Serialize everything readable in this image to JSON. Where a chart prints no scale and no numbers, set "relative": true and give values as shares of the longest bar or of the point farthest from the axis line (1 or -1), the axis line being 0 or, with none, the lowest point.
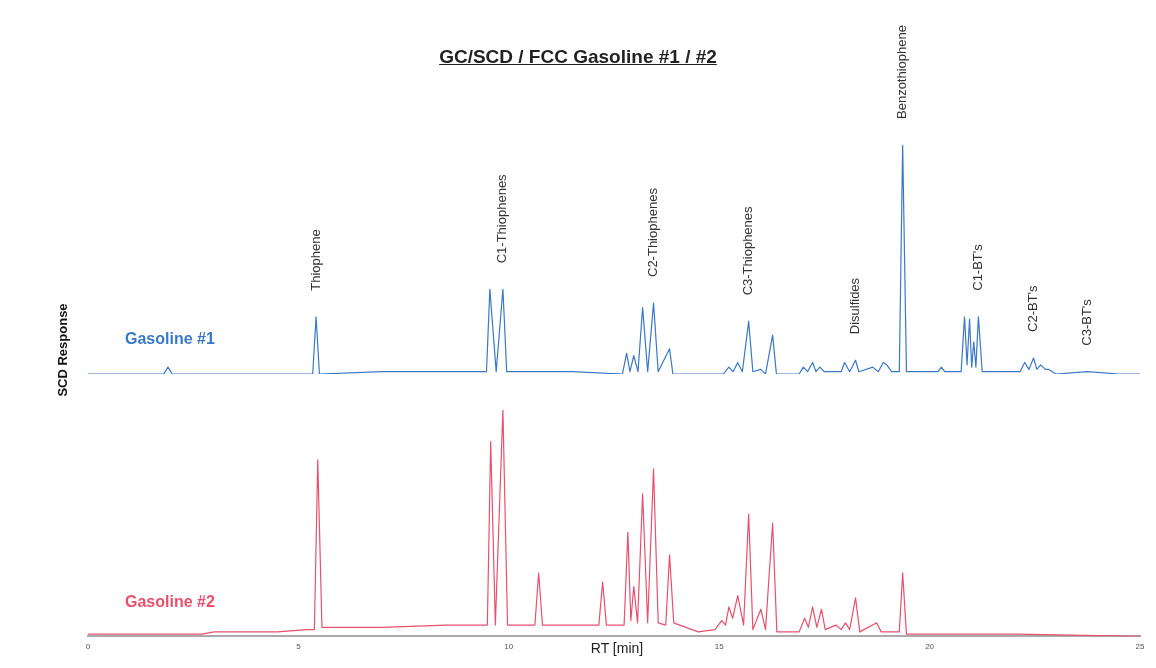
{
  "chart_data": [
    {
      "type": "line",
      "title": "GC/SCD / FCC Gasoline #1 / #2",
      "ylabel": "SCD Response",
      "relative": true,
      "xlim": [
        0,
        25
      ],
      "tick_labels": false,
      "grid": false,
      "marker": "none",
      "legend": false,
      "x": [
        0,
        1.8,
        1.9,
        2.0,
        5.34,
        5.42,
        5.5,
        7.0,
        8.5,
        9.47,
        9.55,
        9.7,
        9.86,
        9.95,
        11.5,
        12.7,
        12.8,
        12.88,
        12.97,
        13.07,
        13.18,
        13.3,
        13.44,
        13.55,
        13.82,
        13.9,
        15.1,
        15.23,
        15.33,
        15.44,
        15.55,
        15.7,
        15.8,
        15.99,
        16.1,
        16.27,
        16.36,
        16.9,
        17.0,
        17.1,
        17.22,
        17.3,
        17.39,
        17.5,
        17.9,
        17.98,
        18.1,
        18.24,
        18.32,
        18.65,
        18.78,
        18.9,
        18.98,
        19.1,
        19.28,
        19.36,
        19.45,
        20.2,
        20.28,
        20.36,
        20.75,
        20.83,
        20.89,
        20.95,
        21.0,
        21.05,
        21.1,
        21.16,
        21.25,
        22.15,
        22.26,
        22.36,
        22.47,
        22.55,
        22.64,
        22.75,
        22.83,
        23.0,
        23.75,
        24.5,
        25
      ],
      "series": [
        {
          "name": "Gasoline #1",
          "color": "#3a78c8",
          "values": [
            0,
            0,
            0.03,
            0,
            0,
            0.25,
            0,
            0.01,
            0.01,
            0.01,
            0.37,
            0.01,
            0.37,
            0.01,
            0.01,
            0,
            0.09,
            0.01,
            0.08,
            0.01,
            0.29,
            0.01,
            0.31,
            0.01,
            0.11,
            0,
            0,
            0.03,
            0.01,
            0.05,
            0.01,
            0.23,
            0.01,
            0.02,
            0,
            0.17,
            0,
            0,
            0.03,
            0.01,
            0.05,
            0.01,
            0.03,
            0.01,
            0.01,
            0.05,
            0.01,
            0.06,
            0.01,
            0.03,
            0.01,
            0.05,
            0.04,
            0.01,
            0.01,
            1.0,
            0.01,
            0.01,
            0.03,
            0.01,
            0.01,
            0.25,
            0.04,
            0.24,
            0.03,
            0.14,
            0.03,
            0.25,
            0.01,
            0.01,
            0.05,
            0.02,
            0.07,
            0.02,
            0.04,
            0.02,
            0.02,
            0,
            0.01,
            0,
            0
          ]
        }
      ],
      "annotations": [
        {
          "text": "Thiophene",
          "x": 5.42,
          "y": 0.25
        },
        {
          "text": "C1-Thiophenes",
          "x": 9.86,
          "y": 0.37
        },
        {
          "text": "C2-Thiophenes",
          "x": 13.44,
          "y": 0.31
        },
        {
          "text": "C3-Thiophenes",
          "x": 15.7,
          "y": 0.23
        },
        {
          "text": "Disulfides",
          "x": 18.24,
          "y": 0.06
        },
        {
          "text": "Benzothiophene",
          "x": 19.36,
          "y": 1.0
        },
        {
          "text": "C1-BT's",
          "x": 21.16,
          "y": 0.25
        },
        {
          "text": "C2-BT's",
          "x": 22.47,
          "y": 0.07
        },
        {
          "text": "C3-BT's",
          "x": 23.75,
          "y": 0.01
        }
      ]
    },
    {
      "type": "line",
      "xlabel": "RT [min]",
      "relative": true,
      "xlim": [
        0,
        25
      ],
      "xticks": [
        0,
        5,
        10,
        15,
        20,
        25
      ],
      "tick_labels": "x",
      "grid": false,
      "marker": "none",
      "legend": false,
      "x": [
        0,
        1.5,
        2.7,
        3.0,
        4.5,
        5.2,
        5.38,
        5.46,
        5.56,
        7.0,
        8.5,
        9.49,
        9.57,
        9.68,
        9.86,
        9.97,
        10.62,
        10.71,
        10.8,
        12.14,
        12.23,
        12.32,
        12.74,
        12.83,
        12.9,
        12.97,
        13.06,
        13.18,
        13.3,
        13.44,
        13.55,
        13.73,
        13.82,
        13.92,
        14.5,
        14.9,
        15.06,
        15.15,
        15.23,
        15.32,
        15.44,
        15.58,
        15.7,
        15.8,
        15.99,
        16.1,
        16.27,
        16.37,
        16.9,
        17.03,
        17.12,
        17.22,
        17.32,
        17.43,
        17.52,
        17.77,
        17.9,
        18.0,
        18.1,
        18.24,
        18.34,
        18.74,
        18.85,
        19.28,
        19.36,
        19.45,
        20.5,
        22.0,
        25
      ],
      "series": [
        {
          "name": "Gasoline #2",
          "color": "#e8506e",
          "values": [
            0.01,
            0.01,
            0.01,
            0.02,
            0.02,
            0.03,
            0.03,
            0.78,
            0.04,
            0.04,
            0.05,
            0.05,
            0.86,
            0.05,
            1.0,
            0.05,
            0.05,
            0.28,
            0.05,
            0.05,
            0.24,
            0.05,
            0.05,
            0.46,
            0.07,
            0.22,
            0.06,
            0.63,
            0.06,
            0.74,
            0.06,
            0.05,
            0.36,
            0.06,
            0.02,
            0.03,
            0.07,
            0.05,
            0.13,
            0.08,
            0.18,
            0.05,
            0.54,
            0.03,
            0.12,
            0.03,
            0.5,
            0.02,
            0.02,
            0.08,
            0.04,
            0.13,
            0.04,
            0.12,
            0.03,
            0.05,
            0.03,
            0.06,
            0.03,
            0.17,
            0.02,
            0.06,
            0.02,
            0.02,
            0.28,
            0.01,
            0.01,
            0.01,
            0
          ]
        }
      ]
    }
  ]
}
